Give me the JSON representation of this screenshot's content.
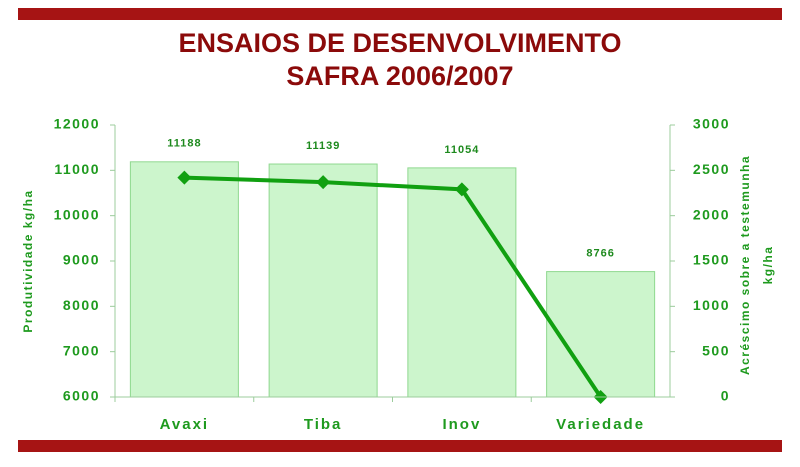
{
  "chart_data": {
    "type": "bar",
    "title": [
      "ENSAIOS DE DESENVOLVIMENTO",
      "SAFRA 2006/2007"
    ],
    "ylabel": "Produtividade kg/ha",
    "y2label": [
      "Acréscimo sobre a testemunha",
      "kg/ha"
    ],
    "categories": [
      "Avaxi",
      "Tiba",
      "Inov",
      "Variedade"
    ],
    "series": [
      {
        "color": "#ccf5cc",
        "values": [
          11188,
          11139,
          11054,
          8766
        ]
      },
      {
        "type": "line",
        "axis": "y2",
        "color": "#11a011",
        "values": [
          2420,
          2370,
          2290,
          0
        ]
      }
    ],
    "ylim": [
      6000,
      12000
    ],
    "yticks": [
      6000,
      7000,
      8000,
      9000,
      10000,
      11000,
      12000
    ],
    "y2lim": [
      0,
      3000
    ],
    "y2ticks": [
      0,
      500,
      1000,
      1500,
      2000,
      2500,
      3000
    ],
    "banner_color": "#a61414"
  }
}
